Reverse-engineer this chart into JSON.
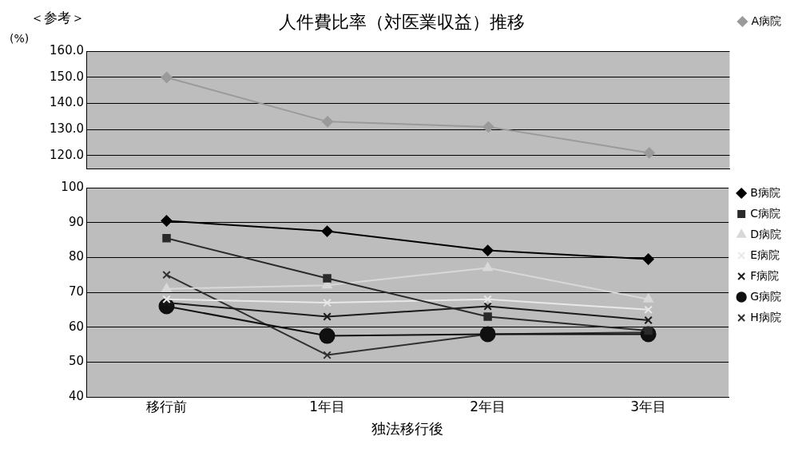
{
  "chart_data": [
    {
      "type": "line",
      "title": "人件費比率（対医業収益）推移",
      "ylabel": "(%)",
      "annotations": [
        "＜参考＞"
      ],
      "categories": [
        null,
        null,
        null,
        null
      ],
      "series": [
        {
          "name": "A病院",
          "color": "#9a9a9a",
          "marker": "diamond",
          "values": [
            150,
            133,
            131,
            121
          ]
        }
      ],
      "ylim": [
        115,
        160
      ],
      "yticks": [
        {
          "value": 120,
          "label": "120.0"
        },
        {
          "value": 130,
          "label": "130.0"
        },
        {
          "value": 140,
          "label": "140.0"
        },
        {
          "value": 150,
          "label": "150.0"
        },
        {
          "value": 160,
          "label": "160.0"
        }
      ],
      "grid": "y",
      "legend": "right",
      "tick_labels": "y"
    },
    {
      "type": "line",
      "xlabel": "独法移行後",
      "categories": [
        "移行前",
        "1年目",
        "2年目",
        "3年目"
      ],
      "series": [
        {
          "name": "B病院",
          "color": "#000000",
          "marker": "diamond",
          "values": [
            90.5,
            87.5,
            82,
            79.5
          ]
        },
        {
          "name": "C病院",
          "color": "#2a2a2a",
          "marker": "square",
          "values": [
            85.5,
            74,
            63,
            59
          ]
        },
        {
          "name": "D病院",
          "color": "#d8d8d8",
          "marker": "triangle",
          "values": [
            71,
            72,
            77,
            68
          ]
        },
        {
          "name": "E病院",
          "color": "#e8e8e8",
          "marker": "cross",
          "values": [
            68,
            67,
            68,
            65
          ]
        },
        {
          "name": "F病院",
          "color": "#1a1a1a",
          "marker": "cross",
          "values": [
            67,
            63,
            66,
            62
          ]
        },
        {
          "name": "G病院",
          "color": "#101010",
          "marker": "circle",
          "values": [
            66,
            57.5,
            58,
            58
          ]
        },
        {
          "name": "H病院",
          "color": "#303030",
          "marker": "cross",
          "values": [
            75,
            52,
            58,
            58.5
          ]
        }
      ],
      "ylim": [
        40,
        100
      ],
      "yticks": [
        40,
        50,
        60,
        70,
        80,
        90,
        100
      ],
      "grid": "y",
      "legend": "right"
    }
  ]
}
